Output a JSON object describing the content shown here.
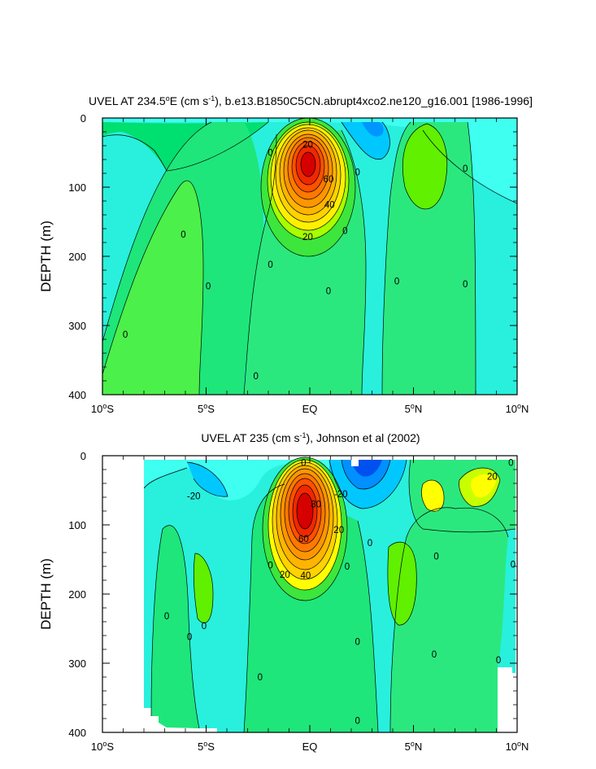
{
  "chart_data": [
    {
      "type": "heatmap",
      "subtype": "filled-contour",
      "title": "UVEL AT 234.5",
      "title_sup": "o",
      "title_rest": "E (cm s",
      "title_sup2": "-1",
      "title_tail": "), b.e13.B1850C5CN.abrupt4xco2.ne120_g16.001 [1986-1996]",
      "ylabel": "DEPTH (m)",
      "xlim": [
        -10,
        10
      ],
      "ylim": [
        400,
        0
      ],
      "x_ticks": [
        {
          "value": -10,
          "label": "10",
          "sup": "o",
          "suffix": "S"
        },
        {
          "value": -5,
          "label": "5",
          "sup": "o",
          "suffix": "S"
        },
        {
          "value": 0,
          "label": "EQ",
          "sup": "",
          "suffix": ""
        },
        {
          "value": 5,
          "label": "5",
          "sup": "o",
          "suffix": "N"
        },
        {
          "value": 10,
          "label": "10",
          "sup": "o",
          "suffix": "N"
        }
      ],
      "y_ticks": [
        0,
        100,
        200,
        300,
        400
      ],
      "contour_interval": 5,
      "core": {
        "x": 0,
        "depth": 85,
        "max": 90
      },
      "contour_labels": [
        {
          "text": "20",
          "x": -0.1,
          "depth": 38
        },
        {
          "text": "60",
          "x": 0.9,
          "depth": 88
        },
        {
          "text": "40",
          "x": 0.95,
          "depth": 125
        },
        {
          "text": "20",
          "x": -0.1,
          "depth": 172
        },
        {
          "text": "0",
          "x": -1.9,
          "depth": 50
        },
        {
          "text": "0",
          "x": 2.3,
          "depth": 78
        },
        {
          "text": "0",
          "x": 7.5,
          "depth": 73
        },
        {
          "text": "0",
          "x": -6.1,
          "depth": 168
        },
        {
          "text": "0",
          "x": 1.7,
          "depth": 163
        },
        {
          "text": "0",
          "x": -1.9,
          "depth": 212
        },
        {
          "text": "0",
          "x": -4.9,
          "depth": 243
        },
        {
          "text": "0",
          "x": 0.9,
          "depth": 250
        },
        {
          "text": "0",
          "x": 4.2,
          "depth": 236
        },
        {
          "text": "0",
          "x": 7.5,
          "depth": 240
        },
        {
          "text": "0",
          "x": -8.9,
          "depth": 313
        },
        {
          "text": "0",
          "x": -2.6,
          "depth": 373
        }
      ]
    },
    {
      "type": "heatmap",
      "subtype": "filled-contour",
      "title": "UVEL AT 235 (cm s",
      "title_sup": "-1",
      "title_rest": "), Johnson et al (2002)",
      "ylabel": "DEPTH (m)",
      "xlim": [
        -10,
        10
      ],
      "ylim": [
        400,
        0
      ],
      "x_ticks": [
        {
          "value": -10,
          "label": "10",
          "sup": "o",
          "suffix": "S"
        },
        {
          "value": -5,
          "label": "5",
          "sup": "o",
          "suffix": "S"
        },
        {
          "value": 0,
          "label": "EQ",
          "sup": "",
          "suffix": ""
        },
        {
          "value": 5,
          "label": "5",
          "sup": "o",
          "suffix": "N"
        },
        {
          "value": 10,
          "label": "10",
          "sup": "o",
          "suffix": "N"
        }
      ],
      "y_ticks": [
        0,
        100,
        200,
        300,
        400
      ],
      "data_extent_x": [
        -8,
        9.9
      ],
      "data_extent_depth": [
        5,
        400
      ],
      "contour_interval": 5,
      "core": {
        "x": -0.2,
        "depth": 85,
        "max": 90
      },
      "contour_labels": [
        {
          "text": "0",
          "x": -0.3,
          "depth": 10
        },
        {
          "text": "-20",
          "x": -5.6,
          "depth": 58
        },
        {
          "text": "-20",
          "x": 1.5,
          "depth": 55
        },
        {
          "text": "80",
          "x": 0.3,
          "depth": 70
        },
        {
          "text": "20",
          "x": 1.4,
          "depth": 107
        },
        {
          "text": "60",
          "x": -0.3,
          "depth": 120
        },
        {
          "text": "20",
          "x": -1.2,
          "depth": 172
        },
        {
          "text": "40",
          "x": -0.2,
          "depth": 173
        },
        {
          "text": "0",
          "x": -1.9,
          "depth": 158
        },
        {
          "text": "0",
          "x": 1.8,
          "depth": 160
        },
        {
          "text": "0",
          "x": 2.9,
          "depth": 126
        },
        {
          "text": "0",
          "x": 6.1,
          "depth": 145
        },
        {
          "text": "20",
          "x": 8.8,
          "depth": 30
        },
        {
          "text": "0",
          "x": 9.7,
          "depth": 10
        },
        {
          "text": "0",
          "x": 9.8,
          "depth": 157
        },
        {
          "text": "0",
          "x": -6.9,
          "depth": 232
        },
        {
          "text": "0",
          "x": -5.8,
          "depth": 262
        },
        {
          "text": "0",
          "x": -5.1,
          "depth": 246
        },
        {
          "text": "0",
          "x": -2.4,
          "depth": 320
        },
        {
          "text": "0",
          "x": 2.3,
          "depth": 269
        },
        {
          "text": "0",
          "x": 6,
          "depth": 287
        },
        {
          "text": "0",
          "x": 9.1,
          "depth": 295
        },
        {
          "text": "0",
          "x": 2.3,
          "depth": 383
        }
      ]
    }
  ]
}
